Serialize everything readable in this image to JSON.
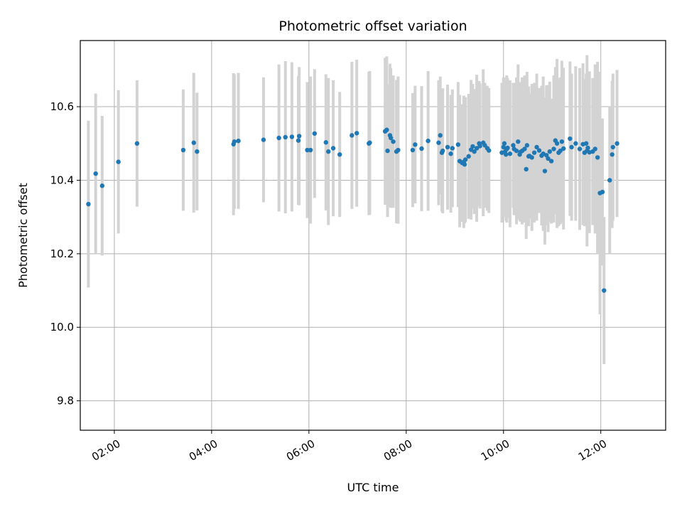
{
  "chart_data": {
    "type": "scatter",
    "title": "Photometric offset variation",
    "xlabel": "UTC time",
    "ylabel": "Photometric offset",
    "xlim": [
      "01:18",
      "13:20"
    ],
    "ylim": [
      9.72,
      10.78
    ],
    "grid": true,
    "x_ticks": [
      "02:00",
      "04:00",
      "06:00",
      "08:00",
      "10:00",
      "12:00"
    ],
    "y_ticks": [
      "9.8",
      "10.0",
      "10.2",
      "10.4",
      "10.6"
    ],
    "colors": {
      "point": "#1f77b4",
      "errorbar": "#d3d3d3",
      "grid": "#b0b0b0"
    },
    "series": [
      {
        "x": [
          "01:28",
          "01:37",
          "01:45",
          "02:05",
          "02:28",
          "03:25",
          "03:38",
          "03:42",
          "04:27",
          "04:28",
          "04:33",
          "05:04",
          "05:23",
          "05:31",
          "05:39",
          "05:47",
          "05:48",
          "05:58",
          "06:02",
          "06:07",
          "06:21",
          "06:24",
          "06:30",
          "06:38",
          "06:53",
          "06:59",
          "07:14",
          "07:15",
          "07:34",
          "07:36",
          "07:37",
          "07:40",
          "07:41",
          "07:44",
          "07:48",
          "07:50",
          "08:08",
          "08:11",
          "08:19",
          "08:27",
          "08:40",
          "08:42",
          "08:44",
          "08:45",
          "08:51",
          "08:55",
          "08:57",
          "09:04",
          "09:06",
          "09:09",
          "09:11",
          "09:12",
          "09:13",
          "09:17",
          "09:20",
          "09:22",
          "09:24",
          "09:27",
          "09:30",
          "09:31",
          "09:35",
          "09:37",
          "09:40",
          "09:42",
          "09:58",
          "10:00",
          "10:01",
          "10:02",
          "10:03",
          "10:04",
          "10:05",
          "10:08",
          "10:12",
          "10:13",
          "10:16",
          "10:18",
          "10:20",
          "10:21",
          "10:23",
          "10:26",
          "10:28",
          "10:29",
          "10:31",
          "10:32",
          "10:35",
          "10:38",
          "10:41",
          "10:44",
          "10:47",
          "10:49",
          "10:51",
          "10:53",
          "10:55",
          "10:57",
          "10:59",
          "11:02",
          "11:04",
          "11:06",
          "11:08",
          "11:10",
          "11:12",
          "11:14",
          "11:22",
          "11:24",
          "11:29",
          "11:34",
          "11:38",
          "11:40",
          "11:42",
          "11:43",
          "11:44",
          "11:46",
          "11:50",
          "11:53",
          "11:56",
          "11:59",
          "12:02",
          "12:04",
          "12:11",
          "12:14",
          "12:15",
          "12:20"
        ],
        "y": [
          10.335,
          10.418,
          10.385,
          10.45,
          10.5,
          10.482,
          10.502,
          10.478,
          10.498,
          10.505,
          10.507,
          10.51,
          10.515,
          10.517,
          10.518,
          10.508,
          10.52,
          10.482,
          10.482,
          10.527,
          10.503,
          10.478,
          10.487,
          10.47,
          10.522,
          10.528,
          10.5,
          10.502,
          10.533,
          10.537,
          10.48,
          10.522,
          10.515,
          10.505,
          10.478,
          10.482,
          10.482,
          10.497,
          10.486,
          10.507,
          10.502,
          10.522,
          10.475,
          10.48,
          10.49,
          10.472,
          10.487,
          10.497,
          10.452,
          10.447,
          10.45,
          10.443,
          10.456,
          10.465,
          10.483,
          10.492,
          10.478,
          10.487,
          10.5,
          10.493,
          10.502,
          10.495,
          10.487,
          10.481,
          10.475,
          10.49,
          10.5,
          10.478,
          10.47,
          10.485,
          10.488,
          10.472,
          10.495,
          10.485,
          10.48,
          10.505,
          10.47,
          10.477,
          10.48,
          10.485,
          10.43,
          10.495,
          10.465,
          10.466,
          10.462,
          10.475,
          10.49,
          10.481,
          10.467,
          10.472,
          10.425,
          10.468,
          10.459,
          10.478,
          10.452,
          10.485,
          10.508,
          10.5,
          10.475,
          10.48,
          10.505,
          10.486,
          10.513,
          10.49,
          10.5,
          10.485,
          10.498,
          10.475,
          10.5,
          10.48,
          10.488,
          10.476,
          10.478,
          10.485,
          10.462,
          10.365,
          10.368,
          10.1,
          10.4,
          10.47,
          10.49,
          10.5
        ],
        "err": [
          0.227,
          0.218,
          0.19,
          0.195,
          0.172,
          0.165,
          0.19,
          0.16,
          0.193,
          0.183,
          0.185,
          0.17,
          0.2,
          0.207,
          0.203,
          0.175,
          0.188,
          0.185,
          0.2,
          0.175,
          0.185,
          0.2,
          0.185,
          0.17,
          0.2,
          0.2,
          0.195,
          0.195,
          0.2,
          0.2,
          0.18,
          0.195,
          0.19,
          0.18,
          0.195,
          0.2,
          0.155,
          0.16,
          0.17,
          0.19,
          0.17,
          0.16,
          0.16,
          0.17,
          0.17,
          0.16,
          0.16,
          0.17,
          0.18,
          0.16,
          0.18,
          0.16,
          0.17,
          0.17,
          0.19,
          0.17,
          0.17,
          0.2,
          0.17,
          0.17,
          0.2,
          0.17,
          0.17,
          0.17,
          0.19,
          0.19,
          0.18,
          0.17,
          0.18,
          0.2,
          0.19,
          0.2,
          0.17,
          0.18,
          0.2,
          0.21,
          0.18,
          0.19,
          0.2,
          0.2,
          0.19,
          0.2,
          0.19,
          0.17,
          0.2,
          0.19,
          0.2,
          0.17,
          0.19,
          0.21,
          0.2,
          0.19,
          0.2,
          0.19,
          0.17,
          0.2,
          0.2,
          0.23,
          0.2,
          0.2,
          0.22,
          0.22,
          0.21,
          0.2,
          0.21,
          0.22,
          0.22,
          0.2,
          0.19,
          0.26,
          0.2,
          0.22,
          0.2,
          0.23,
          0.26,
          0.33,
          0.2,
          0.2,
          0.2,
          0.2,
          0.2,
          0.2
        ]
      }
    ]
  }
}
